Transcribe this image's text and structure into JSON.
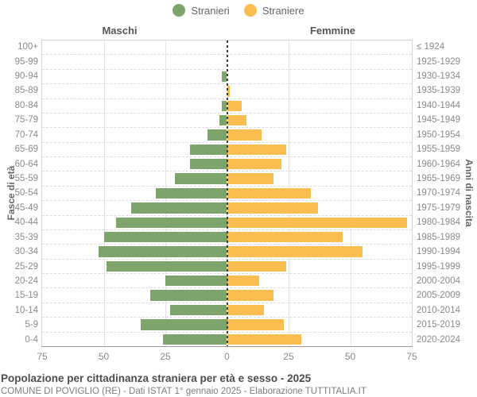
{
  "chart_data": {
    "type": "bar",
    "subtype": "population-pyramid",
    "title": "Popolazione per cittadinanza straniera per età e sesso - 2025",
    "source": "COMUNE DI POVIGLIO (RE) - Dati ISTAT 1° gennaio 2025 - Elaborazione TUTTITALIA.IT",
    "male_header": "Maschi",
    "female_header": "Femmine",
    "left_axis_title": "Fasce di età",
    "right_axis_title": "Anni di nascita",
    "legend": [
      {
        "label": "Stranieri",
        "color": "#7DA46A"
      },
      {
        "label": "Straniere",
        "color": "#FBBD4F"
      }
    ],
    "colors": {
      "male": "#7DA46A",
      "female": "#FBBD4F",
      "grid": "#e4e4e4",
      "centerline": "#3d3d3d"
    },
    "xlim": 75,
    "x_tick_values": [
      -75,
      -50,
      -25,
      0,
      25,
      50,
      75
    ],
    "x_tick_labels": [
      "75",
      "50",
      "25",
      "0",
      "25",
      "50",
      "75"
    ],
    "age_groups": [
      "100+",
      "95-99",
      "90-94",
      "85-89",
      "80-84",
      "75-79",
      "70-74",
      "65-69",
      "60-64",
      "55-59",
      "50-54",
      "45-49",
      "40-44",
      "35-39",
      "30-34",
      "25-29",
      "20-24",
      "15-19",
      "10-14",
      "5-9",
      "0-4"
    ],
    "birth_years": [
      "≤ 1924",
      "1925-1929",
      "1930-1934",
      "1935-1939",
      "1940-1944",
      "1945-1949",
      "1950-1954",
      "1955-1959",
      "1960-1964",
      "1965-1969",
      "1970-1974",
      "1975-1979",
      "1980-1984",
      "1985-1989",
      "1990-1994",
      "1995-1999",
      "2000-2004",
      "2005-2009",
      "2010-2014",
      "2015-2019",
      "2020-2024"
    ],
    "series": [
      {
        "name": "Stranieri",
        "side": "left",
        "values": [
          0,
          0,
          2,
          0,
          2,
          3,
          8,
          15,
          15,
          21,
          29,
          39,
          45,
          50,
          52,
          49,
          25,
          31,
          23,
          35,
          26
        ]
      },
      {
        "name": "Straniere",
        "side": "right",
        "values": [
          0,
          0,
          0,
          1,
          6,
          8,
          14,
          24,
          22,
          19,
          34,
          37,
          73,
          47,
          55,
          24,
          13,
          19,
          15,
          23,
          30
        ]
      }
    ]
  }
}
